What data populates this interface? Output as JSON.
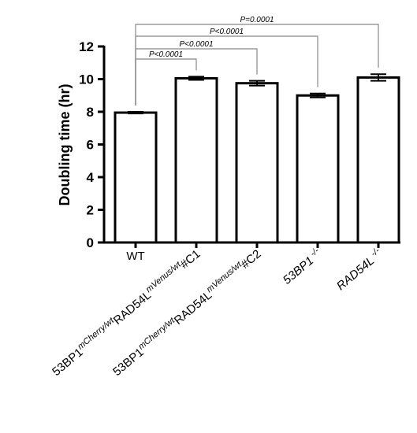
{
  "chart_data": {
    "type": "bar",
    "title": "",
    "xlabel": "",
    "ylabel": "Doubling time (hr)",
    "ylim": [
      0,
      12
    ],
    "yticks": [
      0,
      2,
      4,
      6,
      8,
      10,
      12
    ],
    "grid": false,
    "categories": [
      {
        "parts": [
          {
            "t": "WT",
            "s": "n"
          }
        ]
      },
      {
        "parts": [
          {
            "t": "53BP1",
            "s": "n"
          },
          {
            "t": "mCherry/wt",
            "s": "sup"
          },
          {
            "t": "RAD54L",
            "s": "n"
          },
          {
            "t": "mVenus/wt",
            "s": "sup"
          },
          {
            "t": "#C1",
            "s": "n"
          }
        ]
      },
      {
        "parts": [
          {
            "t": "53BP1",
            "s": "n"
          },
          {
            "t": "mCherry/wt",
            "s": "sup"
          },
          {
            "t": "RAD54L",
            "s": "n"
          },
          {
            "t": "mVenus/wt",
            "s": "sup"
          },
          {
            "t": "#C2",
            "s": "n"
          }
        ]
      },
      {
        "parts": [
          {
            "t": "53BP1",
            "s": "it"
          },
          {
            "t": " -/-",
            "s": "sup"
          }
        ]
      },
      {
        "parts": [
          {
            "t": "RAD54L",
            "s": "it"
          },
          {
            "t": " -/-",
            "s": "sup"
          }
        ]
      }
    ],
    "values": [
      7.95,
      10.05,
      9.75,
      9.0,
      10.1
    ],
    "errors": [
      0.05,
      0.1,
      0.15,
      0.12,
      0.2
    ],
    "comparisons": [
      {
        "from": 0,
        "to": 1,
        "label": "P<0.0001"
      },
      {
        "from": 0,
        "to": 2,
        "label": "P<0.0001"
      },
      {
        "from": 0,
        "to": 3,
        "label": "P<0.0001"
      },
      {
        "from": 0,
        "to": 4,
        "label": "P=0.0001"
      }
    ]
  }
}
